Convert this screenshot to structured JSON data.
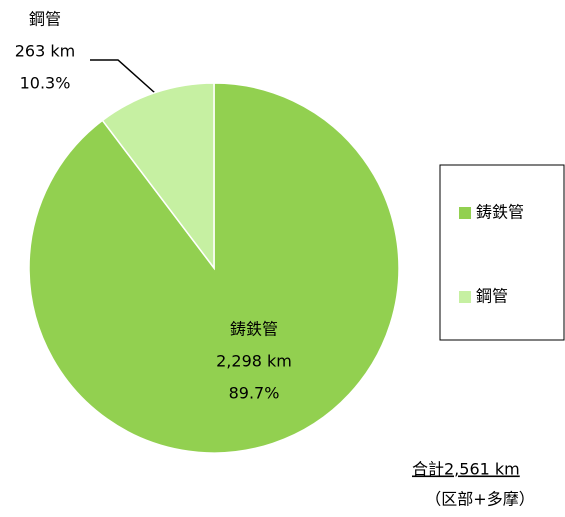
{
  "chart_data": {
    "type": "pie",
    "categories": [
      "鋳鉄管",
      "鋼管"
    ],
    "values": [
      89.7,
      10.3
    ],
    "value_labels": [
      "89.7%",
      "10.3%"
    ],
    "amounts": [
      2298,
      263
    ],
    "amount_labels": [
      "2,298 km",
      "263 km"
    ],
    "colors": [
      "#92d050",
      "#c6f0a2"
    ],
    "legend": "right",
    "annotations": [
      "合計2,561 km",
      "（区部+多摩）"
    ]
  }
}
